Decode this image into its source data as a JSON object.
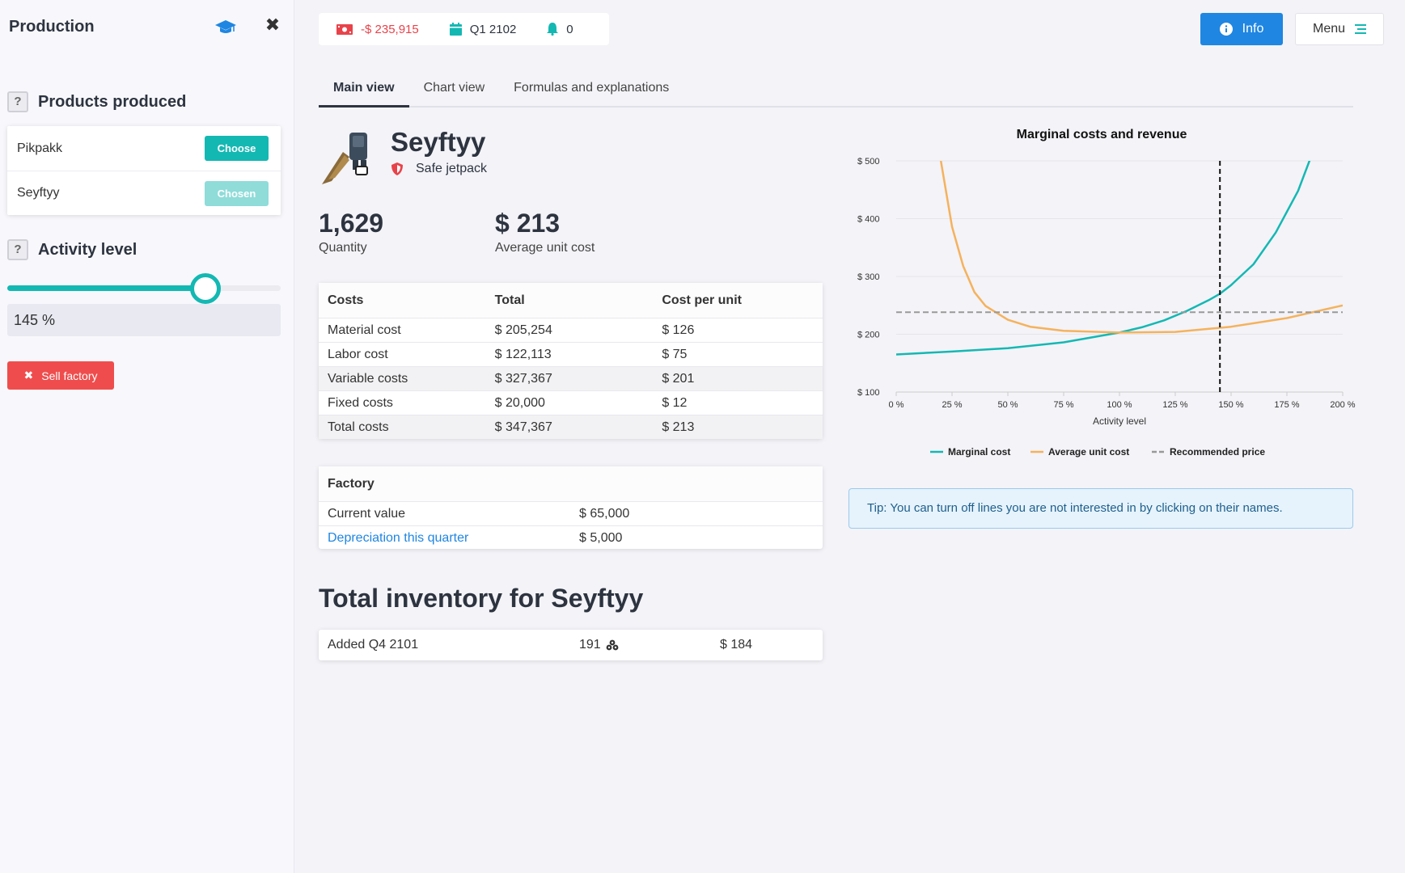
{
  "sidebar": {
    "title": "Production",
    "products_heading": "Products produced",
    "products": [
      {
        "name": "Pikpakk",
        "button": "Choose"
      },
      {
        "name": "Seyftyy",
        "button": "Chosen"
      }
    ],
    "activity_heading": "Activity level",
    "activity_value": "145 %",
    "activity_fraction": 0.725,
    "sell_label": "Sell factory",
    "help_glyph": "?"
  },
  "status": {
    "money": "-$ 235,915",
    "quarter": "Q1 2102",
    "notifications": "0"
  },
  "header": {
    "info_label": "Info",
    "menu_label": "Menu"
  },
  "tabs": [
    "Main view",
    "Chart view",
    "Formulas and explanations"
  ],
  "product": {
    "name": "Seyftyy",
    "subtitle": "Safe jetpack",
    "quantity": "1,629",
    "quantity_label": "Quantity",
    "avg_cost": "$ 213",
    "avg_cost_label": "Average unit cost"
  },
  "costs_table": {
    "headers": [
      "Costs",
      "Total",
      "Cost per unit"
    ],
    "rows": [
      [
        "Material cost",
        "$ 205,254",
        "$ 126"
      ],
      [
        "Labor cost",
        "$ 122,113",
        "$ 75"
      ],
      [
        "Variable costs",
        "$ 327,367",
        "$ 201"
      ],
      [
        "Fixed costs",
        "$ 20,000",
        "$ 12"
      ],
      [
        "Total costs",
        "$ 347,367",
        "$ 213"
      ]
    ]
  },
  "factory_table": {
    "header": "Factory",
    "rows": [
      [
        "Current value",
        "$ 65,000"
      ],
      [
        "Depreciation this quarter",
        "$ 5,000"
      ]
    ]
  },
  "inventory": {
    "title": "Total inventory for Seyftyy",
    "rows": [
      [
        "Added Q4 2101",
        "191",
        "$ 184"
      ]
    ]
  },
  "tip": "Tip: You can turn off lines you are not interested in by clicking on their names.",
  "colors": {
    "teal": "#14b8b3",
    "orange": "#f5b25c",
    "gray": "#999999",
    "red": "#ef4d4d",
    "blue": "#1f86e2"
  },
  "chart_data": {
    "type": "line",
    "title": "Marginal costs and revenue",
    "xlabel": "Activity level",
    "ylabel": "",
    "x_ticks": [
      "0 %",
      "25 %",
      "50 %",
      "75 %",
      "100 %",
      "125 %",
      "150 %",
      "175 %",
      "200 %"
    ],
    "y_ticks": [
      "$ 100",
      "$ 200",
      "$ 300",
      "$ 400",
      "$ 500"
    ],
    "xlim": [
      0,
      200
    ],
    "ylim": [
      100,
      500
    ],
    "current_activity": 145,
    "grid": true,
    "legend": "bottom",
    "series": [
      {
        "name": "Marginal cost",
        "color": "#14b8b3",
        "x": [
          0,
          25,
          50,
          75,
          100,
          110,
          120,
          130,
          140,
          145,
          150,
          160,
          170,
          180,
          190,
          200
        ],
        "y": [
          165,
          170,
          176,
          186,
          203,
          212,
          224,
          240,
          259,
          270,
          285,
          321,
          376,
          448,
          550,
          700
        ]
      },
      {
        "name": "Average unit cost",
        "color": "#f5b25c",
        "x": [
          20,
          25,
          30,
          35,
          40,
          50,
          60,
          75,
          100,
          125,
          150,
          175,
          200
        ],
        "y": [
          500,
          386,
          318,
          273,
          249,
          225,
          213,
          206,
          203,
          204,
          213,
          228,
          250
        ]
      },
      {
        "name": "Recommended price",
        "color": "#999999",
        "x": [
          0,
          200
        ],
        "y": [
          238,
          238
        ],
        "dashed": true
      }
    ]
  }
}
